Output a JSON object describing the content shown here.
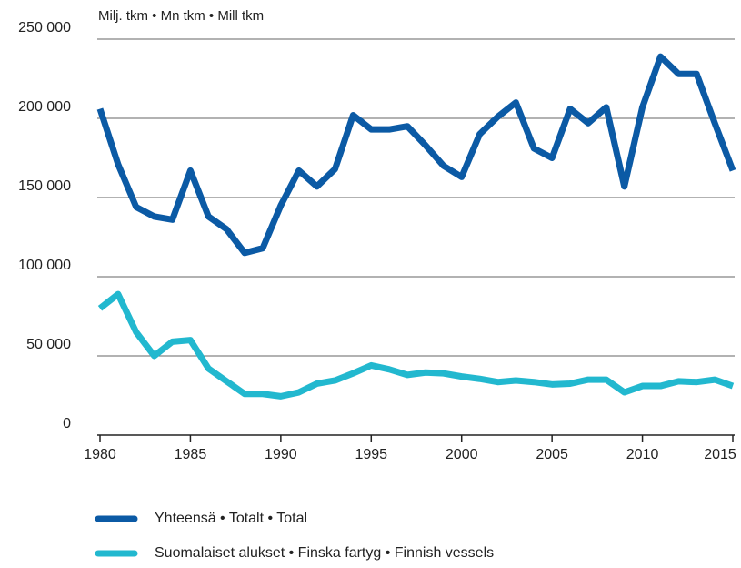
{
  "chart_data": {
    "type": "line",
    "y_axis_label": "Milj. tkm • Mn tkm • Mill tkm",
    "x": [
      1980,
      1981,
      1982,
      1983,
      1984,
      1985,
      1986,
      1987,
      1988,
      1989,
      1990,
      1991,
      1992,
      1993,
      1994,
      1995,
      1996,
      1997,
      1998,
      1999,
      2000,
      2001,
      2002,
      2003,
      2004,
      2005,
      2006,
      2007,
      2008,
      2009,
      2010,
      2011,
      2012,
      2013,
      2014,
      2015
    ],
    "series": [
      {
        "name": "Yhteensä • Totalt • Total",
        "color": "#0b5aa5",
        "values": [
          206000,
          171000,
          144000,
          138000,
          136000,
          167000,
          138000,
          130000,
          115000,
          118000,
          145000,
          167000,
          157000,
          168000,
          202000,
          193000,
          193000,
          195000,
          183000,
          170000,
          163000,
          190000,
          201000,
          210000,
          181000,
          175000,
          206000,
          197000,
          207000,
          157000,
          207000,
          239000,
          228000,
          228000,
          197000,
          167000
        ]
      },
      {
        "name": "Suomalaiset alukset • Finska fartyg • Finnish vessels",
        "color": "#22b8cf",
        "values": [
          80000,
          89000,
          65000,
          50000,
          59000,
          60000,
          42000,
          34000,
          26000,
          26000,
          24500,
          27000,
          32500,
          34500,
          39000,
          44000,
          41500,
          38000,
          39500,
          39000,
          37000,
          35500,
          33500,
          34500,
          33500,
          32000,
          32500,
          35000,
          35000,
          27000,
          31000,
          31000,
          34000,
          33500,
          35000,
          31000
        ]
      }
    ],
    "xlim": [
      1980,
      2015
    ],
    "xticks": [
      1980,
      1985,
      1990,
      1995,
      2000,
      2005,
      2010,
      2015
    ],
    "ylim": [
      0,
      250000
    ],
    "yticks": [
      0,
      {
        "value": 50000,
        "label": "50 000"
      },
      {
        "value": 100000,
        "label": "100 000"
      },
      {
        "value": 150000,
        "label": "150 000"
      },
      {
        "value": 200000,
        "label": "200 000"
      },
      {
        "value": 250000,
        "label": "250 000"
      }
    ],
    "grid": true
  }
}
